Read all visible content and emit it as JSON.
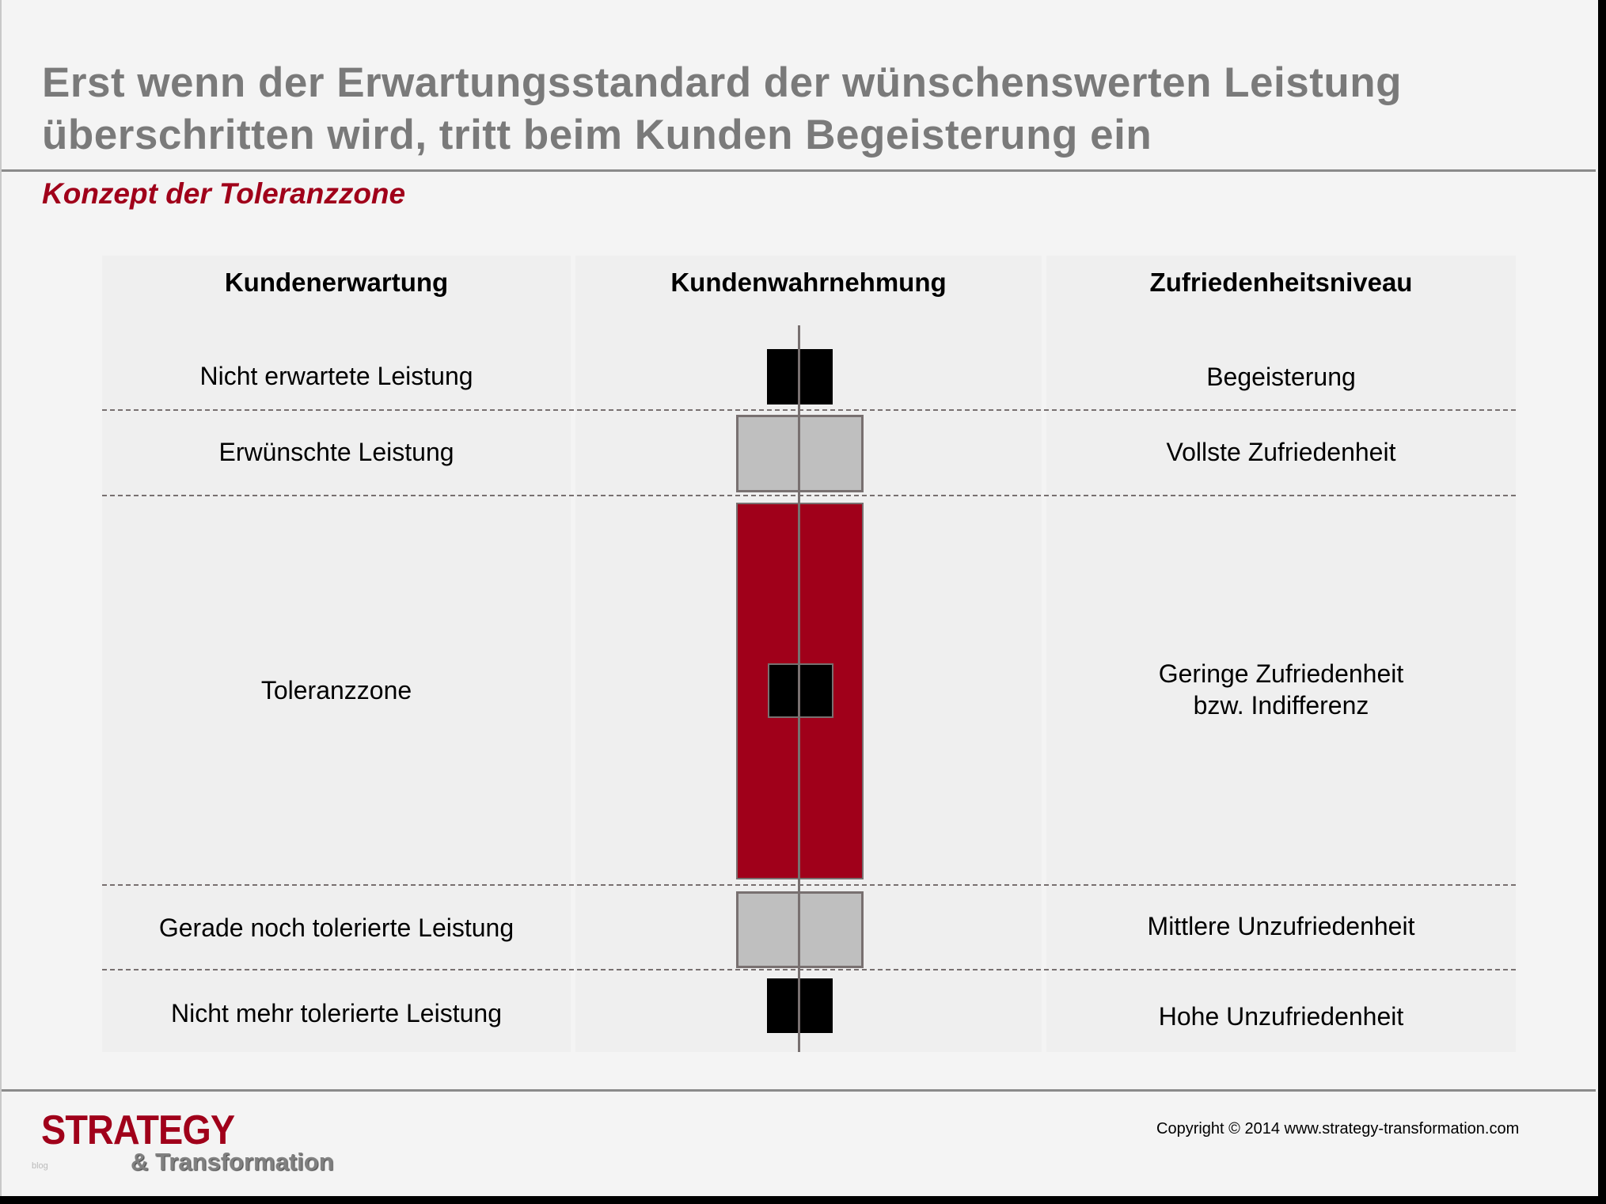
{
  "title": "Erst wenn der Erwartungsstandard der wünschenswerten Leistung überschritten wird, tritt beim Kunden Begeisterung ein",
  "subtitle": "Konzept der Toleranzzone",
  "headers": [
    "Kundenerwartung",
    "Kundenwahrnehmung",
    "Zufriedenheitsniveau"
  ],
  "rows": [
    {
      "expectation": "Nicht erwartete Leistung",
      "satisfaction": "Begeisterung"
    },
    {
      "expectation": "Erwünschte Leistung",
      "satisfaction": "Vollste Zufriedenheit"
    },
    {
      "expectation": "Toleranzzone",
      "satisfaction": "Geringe Zufriedenheit bzw. Indifferenz"
    },
    {
      "expectation": "Gerade noch tolerierte Leistung",
      "satisfaction": "Mittlere Unzufriedenheit"
    },
    {
      "expectation": "Nicht mehr tolerierte Leistung",
      "satisfaction": "Hohe Unzufriedenheit"
    }
  ],
  "colors": {
    "accent": "#a0001a",
    "gray_box": "#bfbfbf",
    "black_box": "#000000",
    "title": "#7a7a7a"
  },
  "footer": {
    "logo_main": "STRATEGY",
    "logo_sub": "& Transformation",
    "logo_tag": "blog",
    "copyright": "Copyright © 2014 www.strategy-transformation.com"
  }
}
